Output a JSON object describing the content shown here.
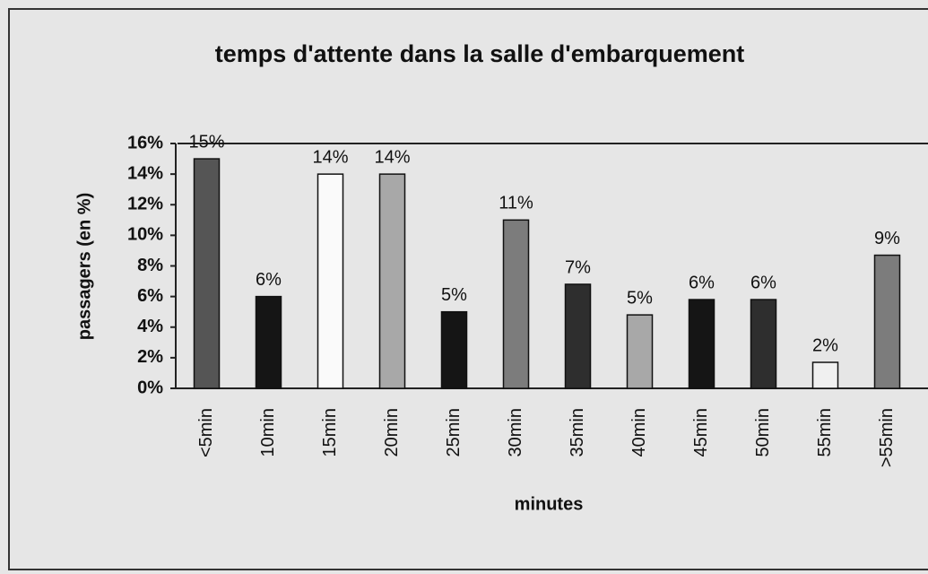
{
  "chart_data": {
    "type": "bar",
    "title": "temps d'attente dans la salle d'embarquement",
    "x_label": "minutes",
    "y_label": "passagers (en %)",
    "categories": [
      "<5min",
      "10min",
      "15min",
      "20min",
      "25min",
      "30min",
      "35min",
      "40min",
      "45min",
      "50min",
      "55min",
      ">55min"
    ],
    "values": [
      15,
      6,
      14,
      14,
      5,
      11,
      6.8,
      4.8,
      5.8,
      5.8,
      1.7,
      8.7
    ],
    "value_labels": [
      "15%",
      "6%",
      "14%",
      "14%",
      "5%",
      "11%",
      "7%",
      "5%",
      "6%",
      "6%",
      "2%",
      "9%"
    ],
    "colors": [
      "#555555",
      "#151515",
      "#fafafa",
      "#a8a8a8",
      "#151515",
      "#7c7c7c",
      "#2e2e2e",
      "#a8a8a8",
      "#151515",
      "#2e2e2e",
      "#f0f0f0",
      "#7c7c7c"
    ],
    "ylim": [
      0,
      16
    ],
    "yticks": [
      {
        "value": 0,
        "label": "0%"
      },
      {
        "value": 2,
        "label": "2%"
      },
      {
        "value": 4,
        "label": "4%"
      },
      {
        "value": 6,
        "label": "6%"
      },
      {
        "value": 8,
        "label": "8%"
      },
      {
        "value": 10,
        "label": "10%"
      },
      {
        "value": 12,
        "label": "12%"
      },
      {
        "value": 14,
        "label": "14%"
      },
      {
        "value": 16,
        "label": "16%"
      }
    ]
  }
}
